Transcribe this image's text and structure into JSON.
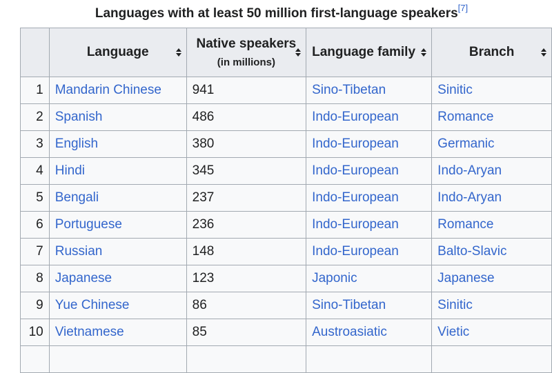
{
  "caption": {
    "text": "Languages with at least 50 million first-language speakers",
    "ref": "[7]"
  },
  "headers": {
    "language": "Language",
    "speakers": "Native speakers",
    "speakers_sub": "(in millions)",
    "family": "Language family",
    "branch": "Branch"
  },
  "rows": [
    {
      "rank": "1",
      "language": "Mandarin Chinese",
      "speakers": "941",
      "family": "Sino-Tibetan",
      "branch": "Sinitic"
    },
    {
      "rank": "2",
      "language": "Spanish",
      "speakers": "486",
      "family": "Indo-European",
      "branch": "Romance"
    },
    {
      "rank": "3",
      "language": "English",
      "speakers": "380",
      "family": "Indo-European",
      "branch": "Germanic"
    },
    {
      "rank": "4",
      "language": "Hindi",
      "speakers": "345",
      "family": "Indo-European",
      "branch": "Indo-Aryan"
    },
    {
      "rank": "5",
      "language": "Bengali",
      "speakers": "237",
      "family": "Indo-European",
      "branch": "Indo-Aryan"
    },
    {
      "rank": "6",
      "language": "Portuguese",
      "speakers": "236",
      "family": "Indo-European",
      "branch": "Romance"
    },
    {
      "rank": "7",
      "language": "Russian",
      "speakers": "148",
      "family": "Indo-European",
      "branch": "Balto-Slavic"
    },
    {
      "rank": "8",
      "language": "Japanese",
      "speakers": "123",
      "family": "Japonic",
      "branch": "Japanese"
    },
    {
      "rank": "9",
      "language": "Yue Chinese",
      "speakers": "86",
      "family": "Sino-Tibetan",
      "branch": "Sinitic"
    },
    {
      "rank": "10",
      "language": "Vietnamese",
      "speakers": "85",
      "family": "Austroasiatic",
      "branch": "Vietic"
    }
  ],
  "colors": {
    "link": "#3366cc",
    "header_bg": "#eaecf0",
    "cell_bg": "#f8f9fa",
    "border": "#a2a9b1"
  }
}
